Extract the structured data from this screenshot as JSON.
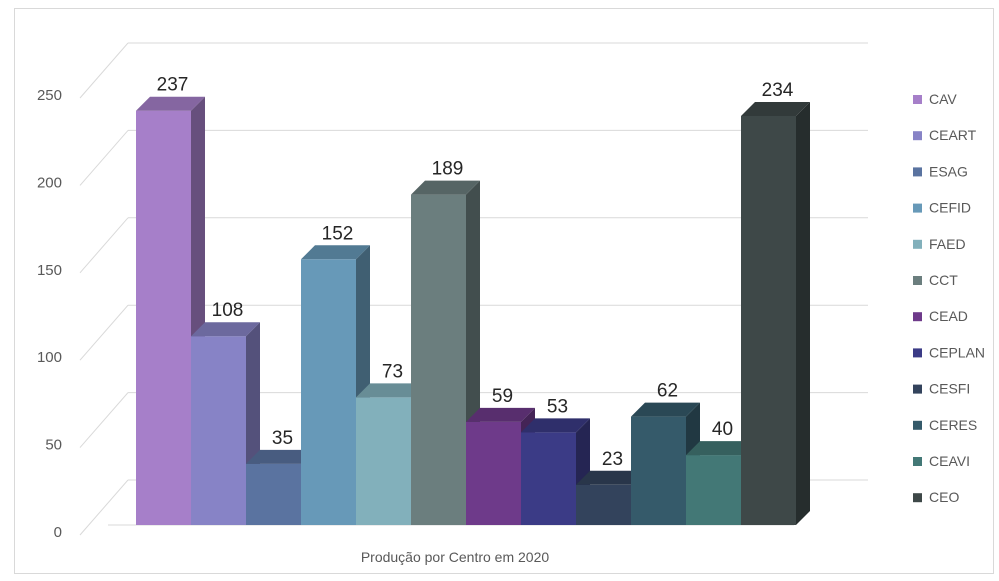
{
  "chart_data": {
    "type": "bar",
    "xlabel": "Produção por Centro em 2020",
    "ylabel": "",
    "ylim": [
      0,
      250
    ],
    "yticks": [
      0,
      50,
      100,
      150,
      200,
      250
    ],
    "grid": true,
    "legend": "right",
    "categories": [
      "CAV",
      "CEART",
      "ESAG",
      "CEFID",
      "FAED",
      "CCT",
      "CEAD",
      "CEPLAN",
      "CESFI",
      "CERES",
      "CEAVI",
      "CEO"
    ],
    "values": [
      237,
      108,
      35,
      152,
      73,
      189,
      59,
      53,
      23,
      62,
      40,
      234
    ],
    "colors": [
      "#a67fc9",
      "#8783c6",
      "#5a73a0",
      "#6799b8",
      "#82b0bb",
      "#6b7e7e",
      "#6e3a8a",
      "#3b3b86",
      "#33435c",
      "#355a6a",
      "#437876",
      "#3e4848"
    ]
  }
}
